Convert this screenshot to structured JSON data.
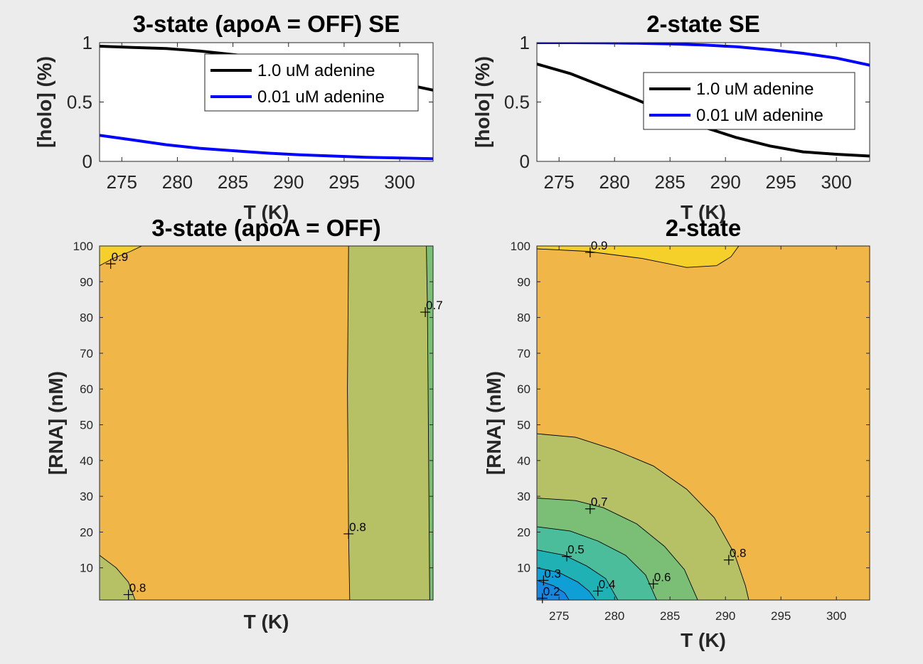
{
  "figure": {
    "background": "#ececec"
  },
  "colors": {
    "black_line": "#000000",
    "blue_line": "#0000ff",
    "contour_yellow": "#f6d02a",
    "contour_orange": "#f0b748",
    "contour_olive": "#b6c064",
    "contour_green": "#7bbf76",
    "contour_teal_light": "#4bbd9a",
    "contour_teal": "#20b1b5",
    "contour_cyan": "#109ed6",
    "contour_blue": "#1686e0"
  },
  "chart_data": [
    {
      "id": "tl",
      "type": "line",
      "title": "3-state (apoA = OFF) SE",
      "xlabel": "T (K)",
      "ylabel": "[holo] (%)",
      "xlim": [
        273,
        303
      ],
      "ylim": [
        0,
        1
      ],
      "xticks": [
        275,
        280,
        285,
        290,
        295,
        300
      ],
      "yticks": [
        0,
        0.5,
        1
      ],
      "legend_position": "top-right",
      "series": [
        {
          "name": "1.0 uM adenine",
          "color": "#000000",
          "x": [
            273,
            276,
            279,
            282,
            285,
            288,
            291,
            294,
            297,
            300,
            303
          ],
          "y": [
            0.97,
            0.96,
            0.95,
            0.93,
            0.9,
            0.87,
            0.83,
            0.78,
            0.72,
            0.66,
            0.6
          ]
        },
        {
          "name": "0.01 uM adenine",
          "color": "#0000ff",
          "x": [
            273,
            276,
            279,
            282,
            285,
            288,
            291,
            294,
            297,
            300,
            303
          ],
          "y": [
            0.22,
            0.18,
            0.14,
            0.11,
            0.09,
            0.07,
            0.055,
            0.045,
            0.035,
            0.028,
            0.022
          ]
        }
      ]
    },
    {
      "id": "tr",
      "type": "line",
      "title": "2-state SE",
      "xlabel": "T (K)",
      "ylabel": "[holo] (%)",
      "xlim": [
        273,
        303
      ],
      "ylim": [
        0,
        1
      ],
      "xticks": [
        275,
        280,
        285,
        290,
        295,
        300
      ],
      "yticks": [
        0,
        0.5,
        1
      ],
      "legend_position": "right",
      "series": [
        {
          "name": "1.0 uM adenine",
          "color": "#000000",
          "x": [
            273,
            276,
            279,
            282,
            285,
            288,
            291,
            294,
            297,
            300,
            303
          ],
          "y": [
            0.82,
            0.74,
            0.63,
            0.52,
            0.4,
            0.29,
            0.2,
            0.13,
            0.08,
            0.06,
            0.045
          ]
        },
        {
          "name": "0.01 uM adenine",
          "color": "#0000ff",
          "x": [
            273,
            276,
            279,
            282,
            285,
            288,
            291,
            294,
            297,
            300,
            303
          ],
          "y": [
            1.0,
            1.0,
            0.998,
            0.995,
            0.99,
            0.98,
            0.965,
            0.94,
            0.91,
            0.87,
            0.81
          ]
        }
      ]
    },
    {
      "id": "bl",
      "type": "contour",
      "title": "3-state (apoA = OFF)",
      "xlabel": "T (K)",
      "ylabel": "[RNA] (nM)",
      "xlim": [
        273,
        303
      ],
      "ylim": [
        1,
        100
      ],
      "xticks": [],
      "yticks": [
        10,
        20,
        30,
        40,
        50,
        60,
        70,
        80,
        90,
        100
      ],
      "background_level": "orange",
      "regions": [
        {
          "level": "yellow",
          "points": [
            [
              273,
              100
            ],
            [
              276.8,
              100
            ],
            [
              275.8,
              98.5
            ],
            [
              274.2,
              96.5
            ],
            [
              273,
              94.5
            ]
          ]
        },
        {
          "level": "olive",
          "points": [
            [
              273,
              13.5
            ],
            [
              274.5,
              10
            ],
            [
              275.6,
              6
            ],
            [
              276.2,
              1
            ],
            [
              273,
              1
            ]
          ]
        },
        {
          "level": "olive",
          "points": [
            [
              295.4,
              100
            ],
            [
              302.4,
              100
            ],
            [
              302.5,
              81
            ],
            [
              302.7,
              1
            ],
            [
              295.5,
              1
            ],
            [
              295.4,
              19.5
            ],
            [
              295.3,
              60
            ]
          ]
        },
        {
          "level": "green",
          "points": [
            [
              302.4,
              100
            ],
            [
              303,
              100
            ],
            [
              303,
              1
            ],
            [
              302.7,
              1
            ],
            [
              302.5,
              81
            ]
          ]
        }
      ],
      "contour_lines": [
        {
          "points": [
            [
              273,
              94.5
            ],
            [
              274.2,
              96.5
            ],
            [
              275.8,
              98.5
            ],
            [
              276.8,
              100
            ]
          ]
        },
        {
          "points": [
            [
              273,
              13.5
            ],
            [
              274.5,
              10
            ],
            [
              275.6,
              6
            ],
            [
              276.2,
              1
            ]
          ]
        },
        {
          "points": [
            [
              295.4,
              100
            ],
            [
              295.3,
              60
            ],
            [
              295.4,
              19.5
            ],
            [
              295.5,
              1
            ]
          ]
        },
        {
          "points": [
            [
              302.4,
              100
            ],
            [
              302.5,
              81
            ],
            [
              302.7,
              1
            ]
          ]
        }
      ],
      "contour_labels": [
        {
          "text": "0.9",
          "x": 274.0,
          "y": 95.0
        },
        {
          "text": "0.8",
          "x": 275.6,
          "y": 2.5
        },
        {
          "text": "0.8",
          "x": 295.4,
          "y": 19.5
        },
        {
          "text": "0.7",
          "x": 302.3,
          "y": 81.5
        }
      ]
    },
    {
      "id": "br",
      "type": "contour",
      "title": "2-state",
      "xlabel": "T (K)",
      "ylabel": "[RNA] (nM)",
      "xlim": [
        273,
        303
      ],
      "ylim": [
        1,
        100
      ],
      "xticks": [
        275,
        280,
        285,
        290,
        295,
        300
      ],
      "yticks": [
        10,
        20,
        30,
        40,
        50,
        60,
        70,
        80,
        90,
        100
      ],
      "background_level": "orange",
      "regions": [
        {
          "level": "yellow",
          "points": [
            [
              273,
              100
            ],
            [
              291.2,
              100
            ],
            [
              290.5,
              97
            ],
            [
              289.2,
              94.5
            ],
            [
              286.5,
              94.0
            ],
            [
              282.5,
              96.5
            ],
            [
              277.5,
              98.5
            ],
            [
              273,
              99.2
            ]
          ]
        },
        {
          "level": "olive",
          "points": [
            [
              273,
              47.5
            ],
            [
              276.5,
              46.5
            ],
            [
              280,
              43
            ],
            [
              283.5,
              38.5
            ],
            [
              286.5,
              32
            ],
            [
              289,
              24
            ],
            [
              290.8,
              14
            ],
            [
              291.8,
              5
            ],
            [
              292.1,
              1
            ],
            [
              273,
              1
            ]
          ]
        },
        {
          "level": "green",
          "points": [
            [
              273,
              29.5
            ],
            [
              276.5,
              28.8
            ],
            [
              279,
              26.8
            ],
            [
              282,
              22.3
            ],
            [
              284.5,
              16
            ],
            [
              286.3,
              9.5
            ],
            [
              287.5,
              1
            ],
            [
              273,
              1
            ]
          ]
        },
        {
          "level": "teal_light",
          "points": [
            [
              273,
              21.5
            ],
            [
              276,
              20.3
            ],
            [
              278.5,
              17.5
            ],
            [
              281,
              13.5
            ],
            [
              282.8,
              8
            ],
            [
              283.8,
              1
            ],
            [
              273,
              1
            ]
          ]
        },
        {
          "level": "teal",
          "points": [
            [
              273,
              15
            ],
            [
              275.5,
              13.5
            ],
            [
              277.5,
              10.5
            ],
            [
              279.2,
              7
            ],
            [
              280.3,
              1
            ],
            [
              273,
              1
            ]
          ]
        },
        {
          "level": "cyan",
          "points": [
            [
              273,
              10
            ],
            [
              275,
              8.7
            ],
            [
              276.7,
              6
            ],
            [
              277.7,
              3.5
            ],
            [
              278.3,
              1
            ],
            [
              273,
              1
            ]
          ]
        },
        {
          "level": "blue",
          "points": [
            [
              273,
              6.5
            ],
            [
              274.5,
              5
            ],
            [
              275.5,
              3
            ],
            [
              275.9,
              1
            ],
            [
              273,
              1
            ]
          ]
        }
      ],
      "contour_lines": [
        {
          "points": [
            [
              273,
              99.2
            ],
            [
              277.5,
              98.5
            ],
            [
              282.5,
              96.5
            ],
            [
              286.5,
              94.0
            ],
            [
              289.2,
              94.5
            ],
            [
              290.5,
              97
            ],
            [
              291.2,
              100
            ]
          ]
        },
        {
          "points": [
            [
              273,
              47.5
            ],
            [
              276.5,
              46.5
            ],
            [
              280,
              43
            ],
            [
              283.5,
              38.5
            ],
            [
              286.5,
              32
            ],
            [
              289,
              24
            ],
            [
              290.8,
              14
            ],
            [
              291.8,
              5
            ],
            [
              292.1,
              1
            ]
          ]
        },
        {
          "points": [
            [
              273,
              29.5
            ],
            [
              276.5,
              28.8
            ],
            [
              279,
              26.8
            ],
            [
              282,
              22.3
            ],
            [
              284.5,
              16
            ],
            [
              286.3,
              9.5
            ],
            [
              287.5,
              1
            ]
          ]
        },
        {
          "points": [
            [
              273,
              21.5
            ],
            [
              276,
              20.3
            ],
            [
              278.5,
              17.5
            ],
            [
              281,
              13.5
            ],
            [
              282.8,
              8
            ],
            [
              283.8,
              1
            ]
          ]
        },
        {
          "points": [
            [
              273,
              15
            ],
            [
              275.5,
              13.5
            ],
            [
              277.5,
              10.5
            ],
            [
              279.2,
              7
            ],
            [
              280.3,
              1
            ]
          ]
        },
        {
          "points": [
            [
              273,
              10
            ],
            [
              275,
              8.7
            ],
            [
              276.7,
              6
            ],
            [
              277.7,
              3.5
            ],
            [
              278.3,
              1
            ]
          ]
        },
        {
          "points": [
            [
              273,
              6.5
            ],
            [
              274.5,
              5
            ],
            [
              275.5,
              3
            ],
            [
              275.9,
              1
            ]
          ]
        }
      ],
      "contour_labels": [
        {
          "text": "0.9",
          "x": 277.8,
          "y": 98.2
        },
        {
          "text": "0.7",
          "x": 277.8,
          "y": 26.5
        },
        {
          "text": "0.5",
          "x": 275.7,
          "y": 13.2
        },
        {
          "text": "0.3",
          "x": 273.6,
          "y": 6.5
        },
        {
          "text": "0.2",
          "x": 273.5,
          "y": 1.5
        },
        {
          "text": "0.4",
          "x": 278.5,
          "y": 3.5
        },
        {
          "text": "0.6",
          "x": 283.5,
          "y": 5.5
        },
        {
          "text": "0.8",
          "x": 290.3,
          "y": 12.2
        }
      ]
    }
  ]
}
